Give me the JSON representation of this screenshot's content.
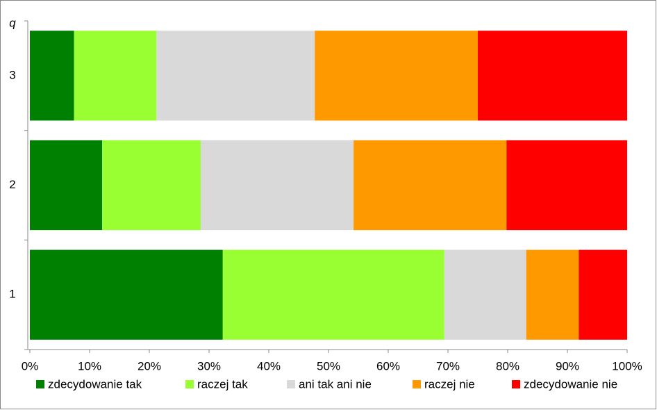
{
  "chart_data": {
    "type": "stacked-barh",
    "y_label": "q",
    "categories": [
      "1",
      "2",
      "3"
    ],
    "series": [
      {
        "name": "zdecydowanie tak",
        "color": "#008000",
        "values": [
          32.3,
          12.1,
          7.4
        ]
      },
      {
        "name": "raczej tak",
        "color": "#99ff33",
        "values": [
          37.1,
          16.5,
          13.8
        ]
      },
      {
        "name": "ani tak ani nie",
        "color": "#d9d9d9",
        "values": [
          13.7,
          25.6,
          26.5
        ]
      },
      {
        "name": "raczej nie",
        "color": "#ff9900",
        "values": [
          8.8,
          25.6,
          27.3
        ]
      },
      {
        "name": "zdecydowanie nie",
        "color": "#ff0000",
        "values": [
          8.1,
          20.2,
          25.0
        ]
      }
    ],
    "xlim": [
      0,
      100
    ],
    "xticks": [
      {
        "value": 0,
        "label": "0%"
      },
      {
        "value": 10,
        "label": "10%"
      },
      {
        "value": 20,
        "label": "20%"
      },
      {
        "value": 30,
        "label": "30%"
      },
      {
        "value": 40,
        "label": "40%"
      },
      {
        "value": 50,
        "label": "50%"
      },
      {
        "value": 60,
        "label": "60%"
      },
      {
        "value": 70,
        "label": "70%"
      },
      {
        "value": 80,
        "label": "80%"
      },
      {
        "value": 90,
        "label": "90%"
      },
      {
        "value": 100,
        "label": "100%"
      }
    ],
    "legend": "bottom"
  }
}
